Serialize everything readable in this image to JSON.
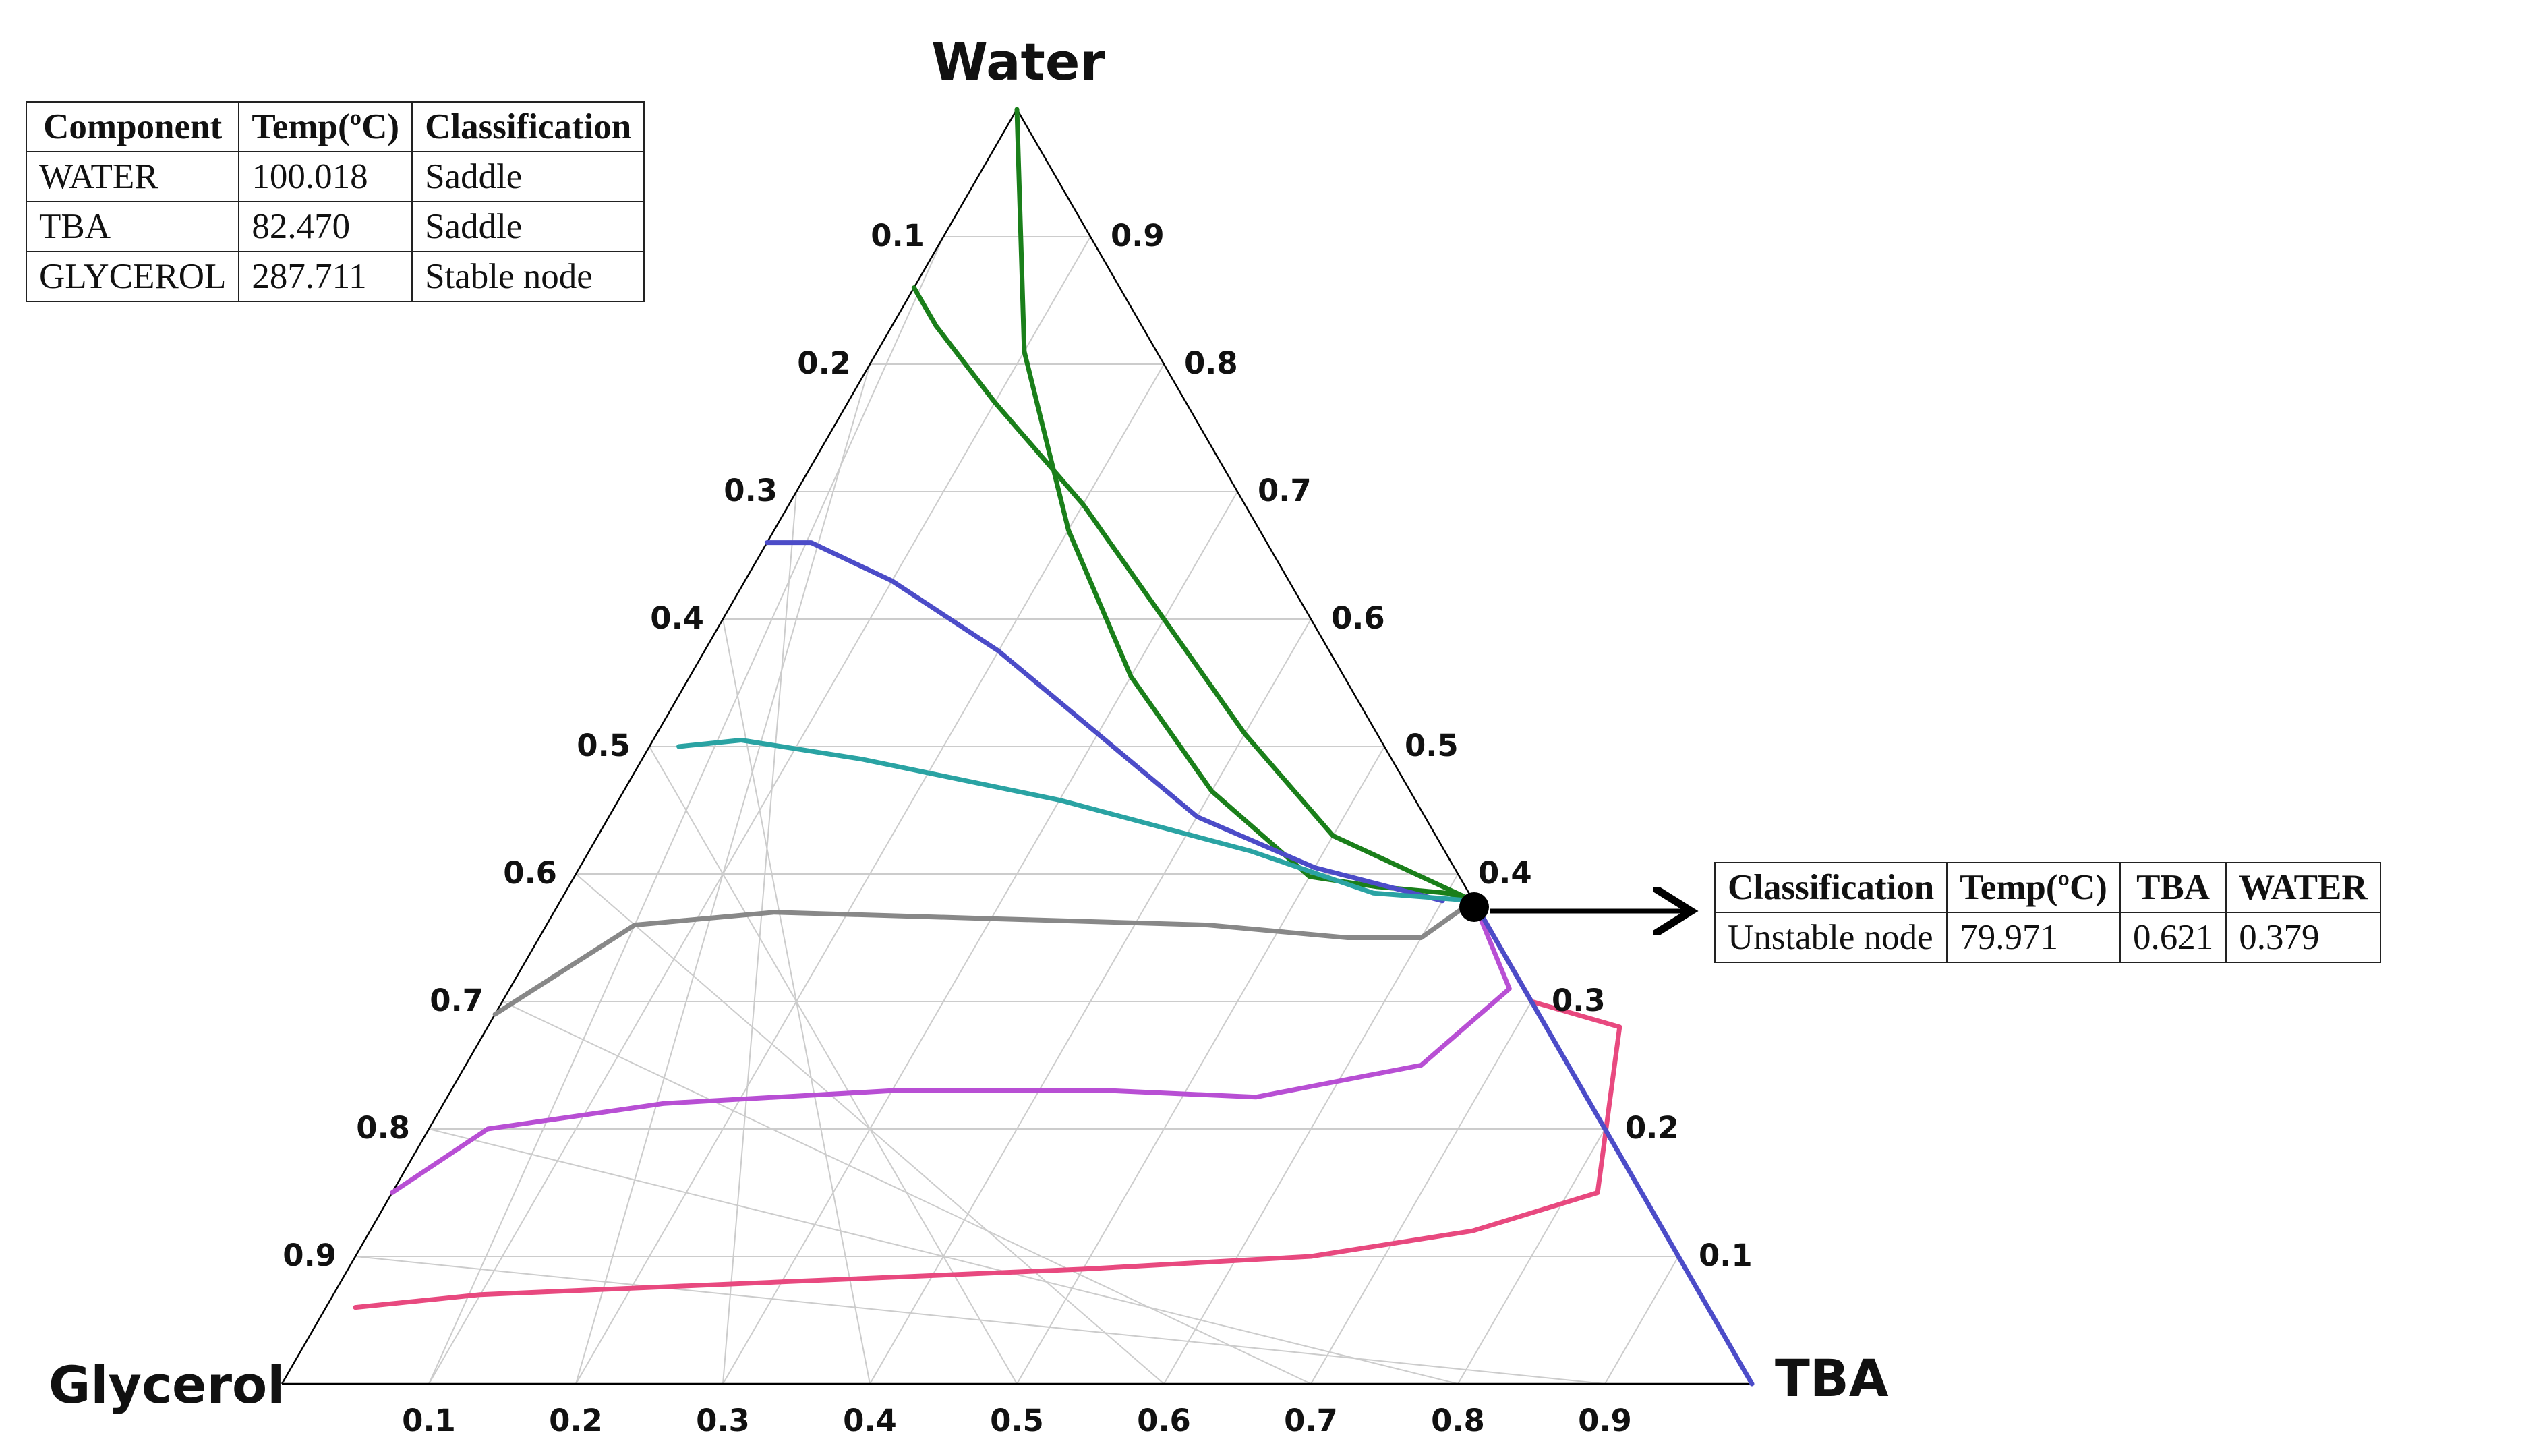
{
  "chart_data": {
    "type": "ternary",
    "vertices": {
      "top": "Water",
      "left": "Glycerol",
      "right": "TBA"
    },
    "ticks": {
      "bottom": [
        "0.1",
        "0.2",
        "0.3",
        "0.4",
        "0.5",
        "0.6",
        "0.7",
        "0.8",
        "0.9"
      ],
      "left": [
        "0.1",
        "0.2",
        "0.3",
        "0.4",
        "0.5",
        "0.6",
        "0.7",
        "0.8",
        "0.9"
      ],
      "right": [
        "0.9",
        "0.8",
        "0.7",
        "0.6",
        "0.5",
        "0.4",
        "0.3",
        "0.2",
        "0.1"
      ]
    },
    "grid": true,
    "node_point": {
      "TBA": 0.621,
      "WATER": 0.379
    },
    "curves": [
      {
        "name": "green",
        "color": "#1a7f1a",
        "points": [
          [
            0.0,
            1.0
          ],
          [
            0.1,
            0.81
          ],
          [
            0.2,
            0.67
          ],
          [
            0.3,
            0.555
          ],
          [
            0.4,
            0.465
          ],
          [
            0.5,
            0.398
          ],
          [
            0.55,
            0.39
          ],
          [
            0.6,
            0.385
          ],
          [
            0.621,
            0.379
          ]
        ]
      },
      {
        "name": "green2",
        "color": "#1a7f1a",
        "points": [
          [
            0.0,
            0.86
          ],
          [
            0.03,
            0.83
          ],
          [
            0.1,
            0.77
          ],
          [
            0.2,
            0.69
          ],
          [
            0.3,
            0.6
          ],
          [
            0.4,
            0.51
          ],
          [
            0.5,
            0.43
          ],
          [
            0.621,
            0.379
          ]
        ]
      },
      {
        "name": "blue",
        "color": "#4c4cc8",
        "points": [
          [
            0.0,
            0.66
          ],
          [
            0.03,
            0.66
          ],
          [
            0.1,
            0.63
          ],
          [
            0.2,
            0.575
          ],
          [
            0.3,
            0.51
          ],
          [
            0.4,
            0.445
          ],
          [
            0.5,
            0.405
          ],
          [
            0.6,
            0.379
          ]
        ]
      },
      {
        "name": "teal",
        "color": "#2aa3a3",
        "points": [
          [
            0.02,
            0.5
          ],
          [
            0.06,
            0.505
          ],
          [
            0.15,
            0.49
          ],
          [
            0.3,
            0.458
          ],
          [
            0.45,
            0.418
          ],
          [
            0.55,
            0.385
          ],
          [
            0.621,
            0.379
          ]
        ]
      },
      {
        "name": "grey",
        "color": "#888888",
        "points": [
          [
            0.0,
            0.29
          ],
          [
            0.06,
            0.36
          ],
          [
            0.15,
            0.37
          ],
          [
            0.3,
            0.365
          ],
          [
            0.45,
            0.36
          ],
          [
            0.55,
            0.35
          ],
          [
            0.6,
            0.35
          ],
          [
            0.621,
            0.379
          ]
        ]
      },
      {
        "name": "magenta",
        "color": "#b84fd4",
        "points": [
          [
            0.0,
            0.15
          ],
          [
            0.04,
            0.2
          ],
          [
            0.15,
            0.22
          ],
          [
            0.3,
            0.23
          ],
          [
            0.45,
            0.23
          ],
          [
            0.55,
            0.225
          ],
          [
            0.65,
            0.25
          ],
          [
            0.68,
            0.31
          ],
          [
            0.621,
            0.379
          ]
        ]
      },
      {
        "name": "pink",
        "color": "#e8497f",
        "points": [
          [
            0.02,
            0.06
          ],
          [
            0.1,
            0.07
          ],
          [
            0.3,
            0.08
          ],
          [
            0.5,
            0.09
          ],
          [
            0.65,
            0.1
          ],
          [
            0.75,
            0.12
          ],
          [
            0.82,
            0.15
          ],
          [
            0.77,
            0.28
          ],
          [
            0.7,
            0.3
          ],
          [
            0.621,
            0.379
          ]
        ]
      },
      {
        "name": "blue-edge",
        "color": "#4c4cc8",
        "points": [
          [
            0.621,
            0.379
          ],
          [
            0.68,
            0.32
          ],
          [
            0.75,
            0.25
          ],
          [
            0.82,
            0.18
          ],
          [
            0.9,
            0.1
          ],
          [
            1.0,
            0.0
          ]
        ]
      }
    ]
  },
  "component_table": {
    "headers": [
      "Component",
      "Temp(ºC)",
      "Classification"
    ],
    "rows": [
      [
        "WATER",
        "100.018",
        "Saddle"
      ],
      [
        "TBA",
        "82.470",
        "Saddle"
      ],
      [
        "GLYCEROL",
        "287.711",
        "Stable node"
      ]
    ]
  },
  "node_table": {
    "headers": [
      "Classification",
      "Temp(ºC)",
      "TBA",
      "WATER"
    ],
    "row": [
      "Unstable node",
      "79.971",
      "0.621",
      "0.379"
    ]
  }
}
